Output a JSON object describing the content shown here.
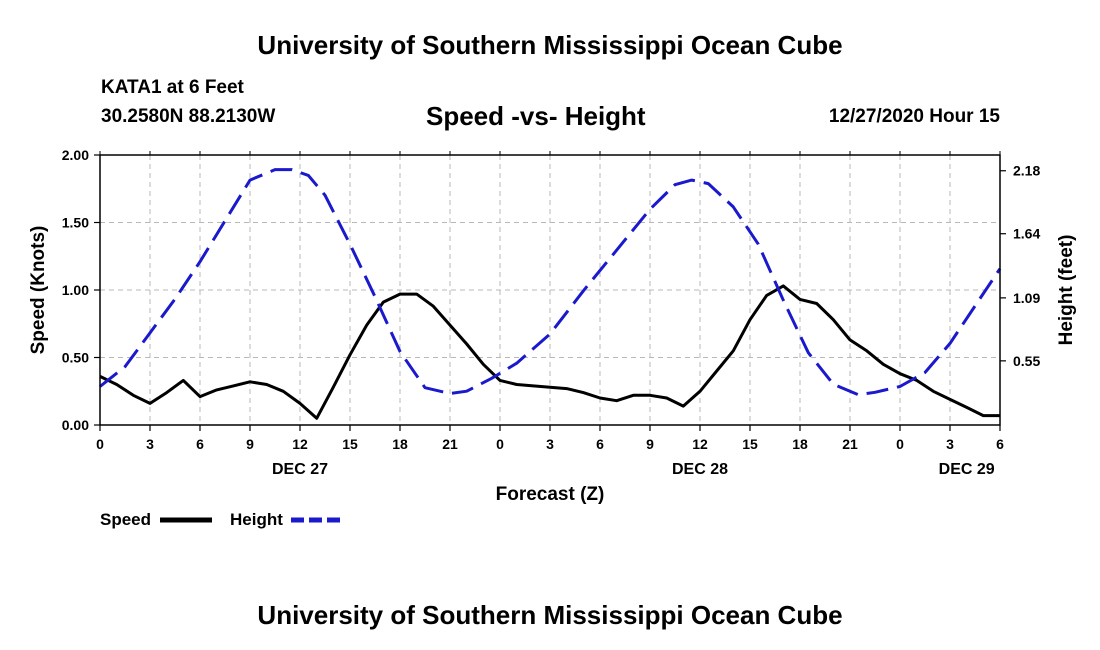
{
  "header": {
    "title": "University of Southern Mississippi Ocean Cube",
    "station": "KATA1 at 6 Feet",
    "coords": "30.2580N 88.2130W",
    "datetime": "12/27/2020 Hour 15",
    "footer": "University of Southern Mississippi Ocean Cube"
  },
  "chart_data": {
    "type": "line",
    "title": "Speed -vs- Height",
    "xlabel": "Forecast (Z)",
    "ylabel": "Speed (Knots)",
    "y2label": "Height (feet)",
    "xlim": [
      0,
      54
    ],
    "ylim": [
      0,
      2.0
    ],
    "y2lim": [
      0.0,
      2.315
    ],
    "grid": true,
    "xticks": [
      0,
      3,
      6,
      9,
      12,
      15,
      18,
      21,
      24,
      27,
      30,
      33,
      36,
      39,
      42,
      45,
      48,
      51,
      54
    ],
    "xtick_labels": [
      "0",
      "3",
      "6",
      "9",
      "12",
      "15",
      "18",
      "21",
      "0",
      "3",
      "6",
      "9",
      "12",
      "15",
      "18",
      "21",
      "0",
      "3",
      "6"
    ],
    "yticks": [
      0,
      0.5,
      1.0,
      1.5,
      2.0
    ],
    "ytick_labels": [
      "0.00",
      "0.50",
      "1.00",
      "1.50",
      "2.00"
    ],
    "y2ticks": [
      0.55,
      1.09,
      1.64,
      2.18
    ],
    "y2tick_labels": [
      "0.55",
      "1.09",
      "1.64",
      "2.18"
    ],
    "date_labels": [
      {
        "x": 12,
        "label": "DEC 27"
      },
      {
        "x": 36,
        "label": "DEC 28"
      },
      {
        "x": 52,
        "label": "DEC 29"
      }
    ],
    "legend_position": "bottom-left",
    "series": [
      {
        "name": "Speed",
        "axis": "left",
        "color": "#000000",
        "style": "solid",
        "x": [
          0,
          1,
          2,
          3,
          4,
          5,
          6,
          7,
          8,
          9,
          10,
          11,
          12,
          13,
          14,
          15,
          16,
          17,
          18,
          19,
          20,
          21,
          22,
          23,
          24,
          25,
          26,
          27,
          28,
          29,
          30,
          31,
          32,
          33,
          34,
          35,
          36,
          37,
          38,
          39,
          40,
          41,
          42,
          43,
          44,
          45,
          46,
          47,
          48,
          49,
          50,
          51,
          52,
          53,
          54
        ],
        "y": [
          0.36,
          0.3,
          0.22,
          0.16,
          0.24,
          0.33,
          0.21,
          0.26,
          0.29,
          0.32,
          0.3,
          0.25,
          0.16,
          0.05,
          0.28,
          0.52,
          0.74,
          0.91,
          0.97,
          0.97,
          0.88,
          0.74,
          0.6,
          0.45,
          0.33,
          0.3,
          0.29,
          0.28,
          0.27,
          0.24,
          0.2,
          0.18,
          0.22,
          0.22,
          0.2,
          0.14,
          0.25,
          0.4,
          0.55,
          0.78,
          0.96,
          1.03,
          0.93,
          0.9,
          0.78,
          0.63,
          0.55,
          0.45,
          0.38,
          0.33,
          0.25,
          0.19,
          0.13,
          0.07,
          0.07
        ]
      },
      {
        "name": "Height",
        "axis": "right",
        "color": "#1a1acc",
        "style": "dashed",
        "x": [
          0,
          1.5,
          3,
          4.5,
          6,
          7.5,
          9,
          10.5,
          11.5,
          12.5,
          13.5,
          15,
          16.5,
          18,
          19.5,
          21,
          22,
          23.5,
          25,
          27,
          29,
          31,
          33,
          34.5,
          35.5,
          36.5,
          38,
          39.5,
          41,
          42.5,
          44,
          45.5,
          46.5,
          48,
          49.5,
          51,
          52.5,
          54
        ],
        "y": [
          0.33,
          0.5,
          0.79,
          1.08,
          1.4,
          1.75,
          2.1,
          2.19,
          2.19,
          2.14,
          1.97,
          1.55,
          1.1,
          0.63,
          0.32,
          0.27,
          0.29,
          0.4,
          0.53,
          0.78,
          1.15,
          1.5,
          1.85,
          2.06,
          2.1,
          2.07,
          1.87,
          1.55,
          1.07,
          0.62,
          0.35,
          0.26,
          0.28,
          0.33,
          0.45,
          0.7,
          1.02,
          1.34
        ]
      }
    ]
  },
  "legend": {
    "speed_label": "Speed",
    "height_label": "Height"
  },
  "colors": {
    "speed": "#000000",
    "height": "#1a1acc",
    "grid": "#b8b8b8"
  }
}
